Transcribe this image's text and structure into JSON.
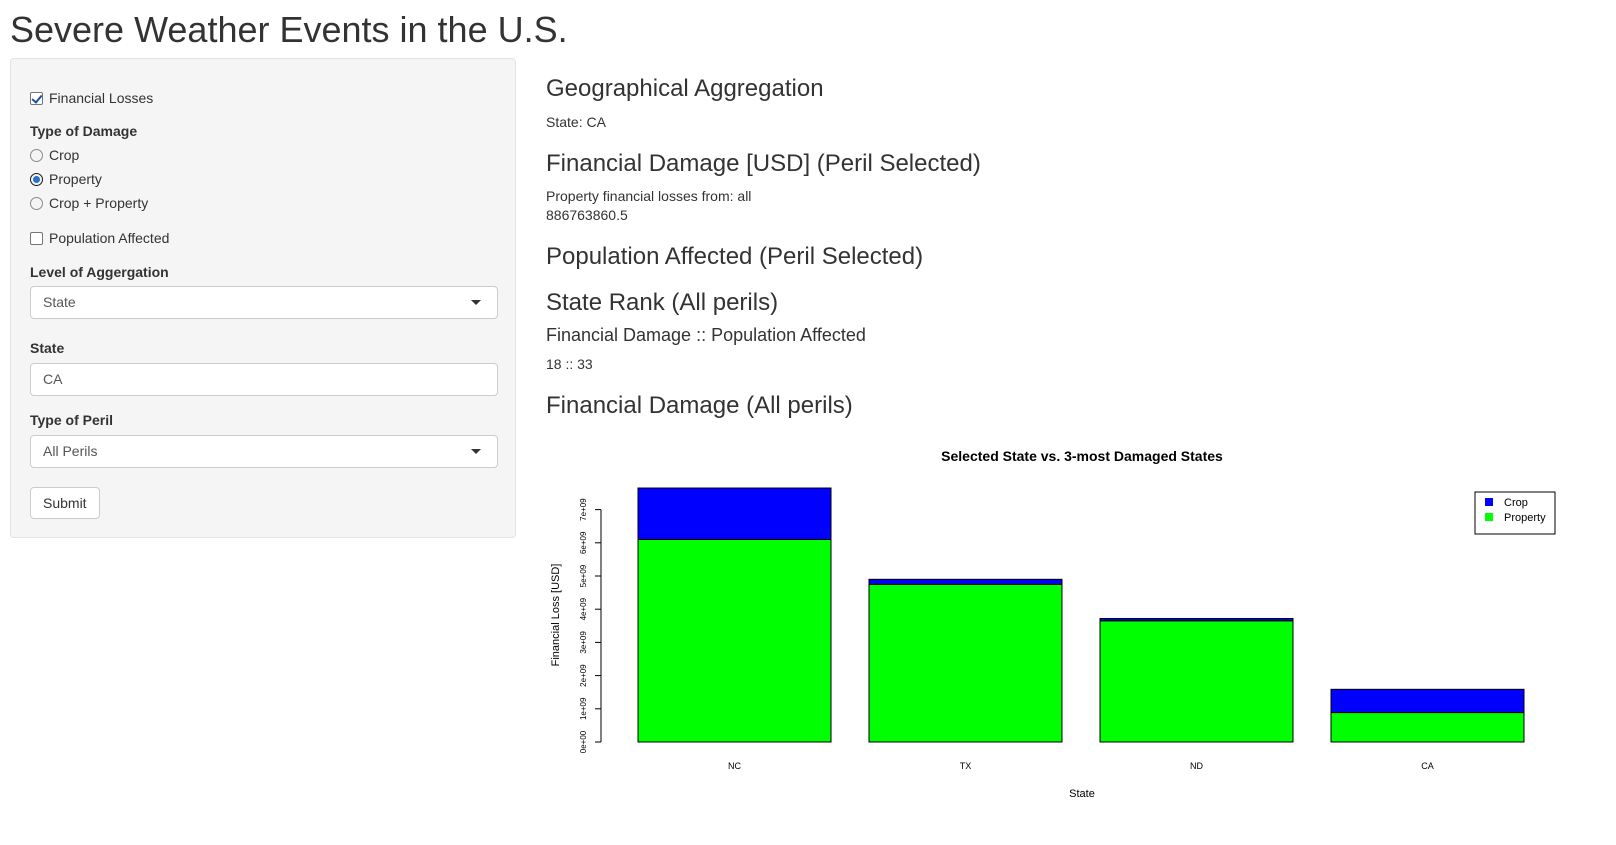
{
  "page_title": "Severe Weather Events in the U.S.",
  "sidebar": {
    "financial_losses": {
      "label": "Financial Losses",
      "checked": true
    },
    "type_of_damage": {
      "label": "Type of Damage",
      "options": [
        {
          "label": "Crop",
          "selected": false
        },
        {
          "label": "Property",
          "selected": true
        },
        {
          "label": "Crop + Property",
          "selected": false
        }
      ]
    },
    "population_affected": {
      "label": "Population Affected",
      "checked": false
    },
    "level_of_aggregation": {
      "label": "Level of Aggergation",
      "value": "State"
    },
    "state": {
      "label": "State",
      "value": "CA"
    },
    "type_of_peril": {
      "label": "Type of Peril",
      "value": "All Perils"
    },
    "submit_label": "Submit"
  },
  "main": {
    "geo_heading": "Geographical Aggregation",
    "geo_text": "State: CA",
    "fin_heading": "Financial Damage [USD] (Peril Selected)",
    "fin_text": "Property financial losses from: all",
    "fin_value": "886763860.5",
    "pop_heading": "Population Affected (Peril Selected)",
    "rank_heading": "State Rank (All perils)",
    "rank_subheading": "Financial Damage :: Population Affected",
    "rank_value": "18 :: 33",
    "chart_heading": "Financial Damage (All perils)"
  },
  "colors": {
    "crop": "#0000ff",
    "property": "#00ff00"
  },
  "chart_data": {
    "type": "bar",
    "stacked": true,
    "title": "Selected State vs. 3-most Damaged States",
    "xlabel": "State",
    "ylabel": "Financial Loss [USD]",
    "categories": [
      "NC",
      "TX",
      "ND",
      "CA"
    ],
    "series": [
      {
        "name": "Property",
        "values": [
          6100000000,
          4750000000,
          3650000000,
          886763860.5
        ]
      },
      {
        "name": "Crop",
        "values": [
          1550000000,
          150000000,
          70000000,
          700000000
        ]
      }
    ],
    "yticks": [
      0,
      1000000000,
      2000000000,
      3000000000,
      4000000000,
      5000000000,
      6000000000,
      7000000000
    ],
    "ytick_labels": [
      "0e+00",
      "1e+09",
      "2e+09",
      "3e+09",
      "4e+09",
      "5e+09",
      "6e+09",
      "7e+09"
    ],
    "legend": {
      "position": "top-right",
      "entries": [
        "Crop",
        "Property"
      ]
    },
    "grid": false
  }
}
